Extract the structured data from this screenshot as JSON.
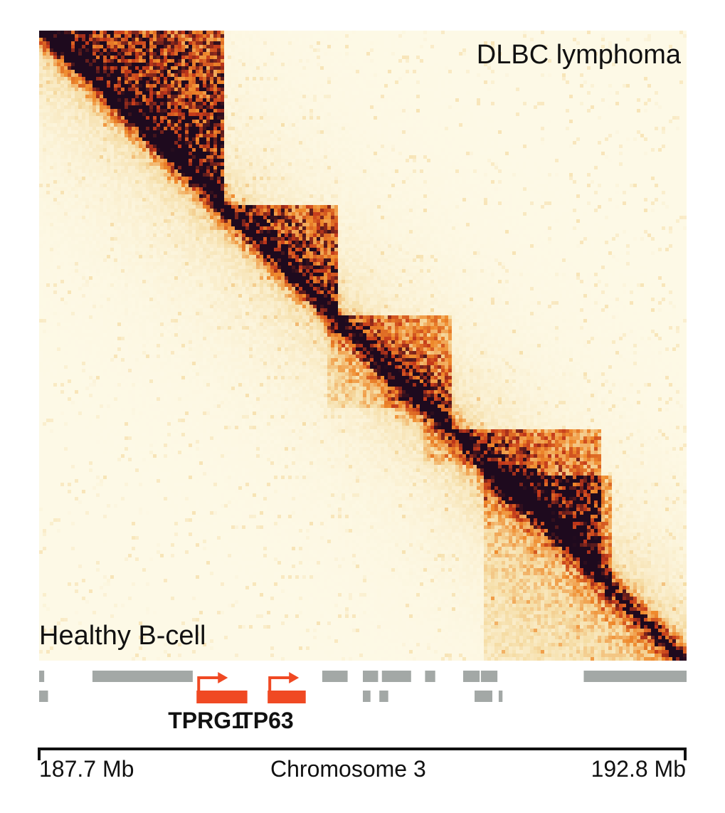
{
  "chart_data": {
    "type": "heatmap",
    "title": "",
    "upper_triangle_label": "DLBC lymphoma",
    "lower_triangle_label": "Healthy B-cell",
    "colors": {
      "low": "#fdf9e6",
      "mid": "#ef8a2c",
      "high": "#c3381a",
      "max": "#1e0a1e",
      "gene_track": "#a3a8a6",
      "highlight_gene": "#f04923"
    },
    "genome_axis": {
      "chromosome": "Chromosome 3",
      "start_label": "187.7 Mb",
      "end_label": "192.8 Mb",
      "start_mb": 187.7,
      "end_mb": 192.8
    },
    "domains_upper": [
      {
        "start_mb": 187.7,
        "end_mb": 189.15,
        "strength": 0.85
      },
      {
        "start_mb": 189.1,
        "end_mb": 190.05,
        "strength": 0.65
      },
      {
        "start_mb": 190.0,
        "end_mb": 190.95,
        "strength": 0.45
      },
      {
        "start_mb": 190.9,
        "end_mb": 192.1,
        "strength": 0.55
      },
      {
        "start_mb": 191.3,
        "end_mb": 192.2,
        "strength": 0.4
      }
    ],
    "domains_lower": [
      {
        "start_mb": 189.95,
        "end_mb": 190.75,
        "strength": 0.18
      },
      {
        "start_mb": 190.7,
        "end_mb": 191.2,
        "strength": 0.15
      },
      {
        "start_mb": 191.2,
        "end_mb": 192.8,
        "strength": 0.2
      }
    ],
    "hotspots_mb": [
      190.6,
      191.35
    ],
    "genes": [
      {
        "name": "TPRG1",
        "start_mb": 188.94,
        "end_mb": 189.34,
        "row": 2,
        "highlight": true
      },
      {
        "name": "TP63",
        "start_mb": 189.5,
        "end_mb": 189.8,
        "row": 2,
        "highlight": true
      }
    ],
    "other_genes": [
      {
        "start_mb": 187.7,
        "end_mb": 187.74,
        "row": 1
      },
      {
        "start_mb": 187.7,
        "end_mb": 187.77,
        "row": 2
      },
      {
        "start_mb": 188.12,
        "end_mb": 188.91,
        "row": 1
      },
      {
        "start_mb": 189.93,
        "end_mb": 190.13,
        "row": 1
      },
      {
        "start_mb": 190.25,
        "end_mb": 190.37,
        "row": 1
      },
      {
        "start_mb": 190.25,
        "end_mb": 190.31,
        "row": 2
      },
      {
        "start_mb": 190.38,
        "end_mb": 190.45,
        "row": 2
      },
      {
        "start_mb": 190.4,
        "end_mb": 190.63,
        "row": 1
      },
      {
        "start_mb": 190.74,
        "end_mb": 190.82,
        "row": 1
      },
      {
        "start_mb": 191.04,
        "end_mb": 191.17,
        "row": 1
      },
      {
        "start_mb": 191.18,
        "end_mb": 191.31,
        "row": 1
      },
      {
        "start_mb": 191.13,
        "end_mb": 191.27,
        "row": 2
      },
      {
        "start_mb": 191.32,
        "end_mb": 191.35,
        "row": 2
      },
      {
        "start_mb": 191.99,
        "end_mb": 192.8,
        "row": 1
      }
    ]
  }
}
